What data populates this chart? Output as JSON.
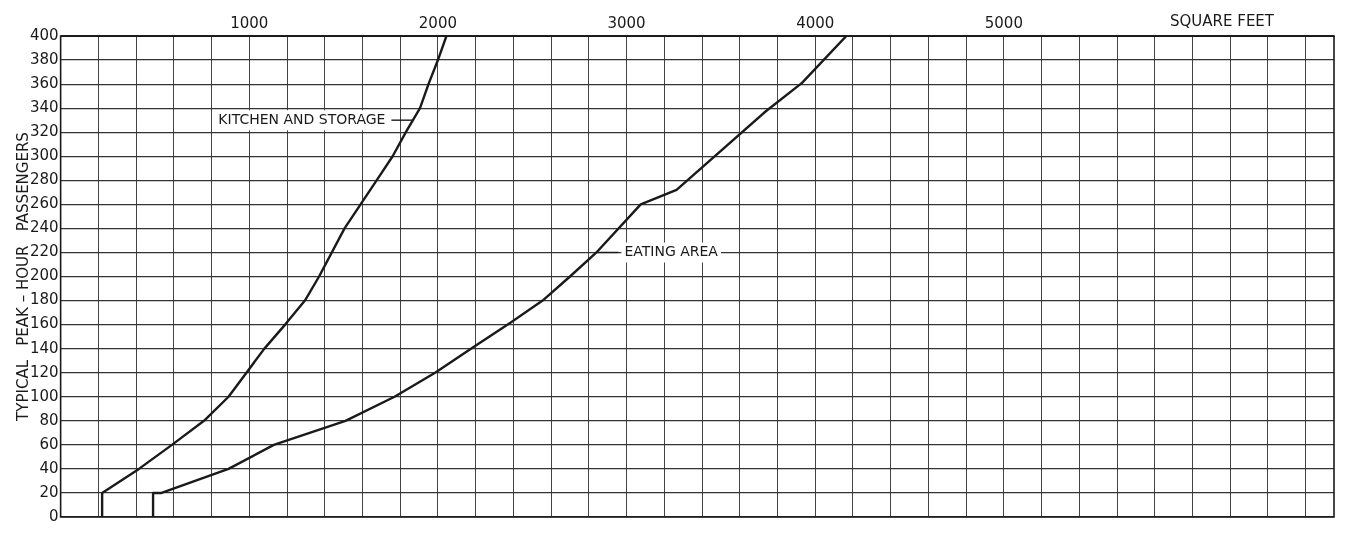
{
  "chart_data": {
    "type": "line",
    "xlabel": "SQUARE FEET",
    "ylabel": "TYPICAL   PEAK – HOUR   PASSENGERS",
    "xlim": [
      0,
      6750
    ],
    "ylim": [
      0,
      400
    ],
    "xticks": [
      {
        "value": 0,
        "label": null
      },
      {
        "value": 200,
        "label": null
      },
      {
        "value": 400,
        "label": null
      },
      {
        "value": 600,
        "label": null
      },
      {
        "value": 800,
        "label": null
      },
      1000,
      {
        "value": 1200,
        "label": null
      },
      {
        "value": 1400,
        "label": null
      },
      {
        "value": 1600,
        "label": null
      },
      {
        "value": 1800,
        "label": null
      },
      2000,
      {
        "value": 2200,
        "label": null
      },
      {
        "value": 2400,
        "label": null
      },
      {
        "value": 2600,
        "label": null
      },
      {
        "value": 2800,
        "label": null
      },
      3000,
      {
        "value": 3200,
        "label": null
      },
      {
        "value": 3400,
        "label": null
      },
      {
        "value": 3600,
        "label": null
      },
      {
        "value": 3800,
        "label": null
      },
      4000,
      {
        "value": 4200,
        "label": null
      },
      {
        "value": 4400,
        "label": null
      },
      {
        "value": 4600,
        "label": null
      },
      {
        "value": 4800,
        "label": null
      },
      5000,
      {
        "value": 5200,
        "label": null
      },
      {
        "value": 5400,
        "label": null
      },
      {
        "value": 5600,
        "label": null
      },
      {
        "value": 5800,
        "label": null
      },
      {
        "value": 6000,
        "label": null
      },
      {
        "value": 6200,
        "label": null
      },
      {
        "value": 6400,
        "label": null
      },
      {
        "value": 6600,
        "label": null
      }
    ],
    "yticks": [
      0,
      20,
      40,
      60,
      80,
      100,
      120,
      140,
      160,
      180,
      200,
      220,
      240,
      260,
      280,
      300,
      320,
      340,
      360,
      380,
      400
    ],
    "grid": true,
    "legend": false,
    "marker": "none",
    "line_style": "solid",
    "series": [
      {
        "color": "#1a1a1a",
        "x": [
          220,
          220,
          415,
          590,
          760,
          890,
          985,
          1080,
          1190,
          1295,
          1370,
          1505,
          1675,
          1760,
          1830,
          1905,
          1950,
          2000,
          2045
        ],
        "values": [
          0,
          20,
          40,
          60,
          80,
          100,
          120,
          140,
          160,
          180,
          200,
          240,
          280,
          300,
          320,
          340,
          360,
          380,
          400
        ]
      },
      {
        "color": "#1a1a1a",
        "x": [
          490,
          490,
          535,
          890,
          1130,
          1510,
          1770,
          1985,
          2175,
          2370,
          2555,
          2700,
          2840,
          3075,
          3265,
          3735,
          3930,
          4165
        ],
        "values": [
          0,
          20,
          20,
          40,
          60,
          80,
          100,
          120,
          140,
          160,
          180,
          200,
          220,
          260,
          272,
          337,
          361,
          400
        ]
      }
    ],
    "annotations": [
      {
        "text": "KITCHEN AND STORAGE",
        "x": 1870,
        "y": 330
      },
      {
        "text": "EATING AREA",
        "x": 2840,
        "y": 220
      }
    ]
  }
}
